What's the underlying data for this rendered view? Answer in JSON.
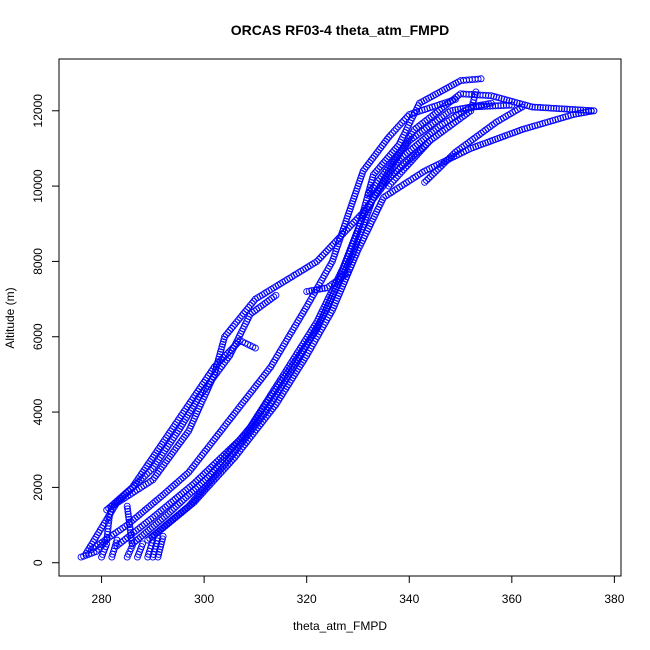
{
  "chart_data": {
    "type": "scatter",
    "title": "ORCAS RF03-4 theta_atm_FMPD",
    "xlabel": "theta_atm_FMPD",
    "ylabel": "Altitude (m)",
    "xlim": [
      275.6,
      377.0
    ],
    "ylim": [
      152,
      12870
    ],
    "x_ticks": [
      280,
      300,
      320,
      340,
      360,
      380
    ],
    "y_ticks": [
      0,
      2000,
      4000,
      6000,
      8000,
      10000,
      12000
    ],
    "x_tick_labels": [
      "280",
      "300",
      "320",
      "340",
      "360",
      "380"
    ],
    "y_tick_labels": [
      "0",
      "2000",
      "4000",
      "6000",
      "8000",
      "10000",
      "12000"
    ],
    "grid": false,
    "legend": "none",
    "marker": "open-circle",
    "marker_color": "#0000ff",
    "series": [
      {
        "points": [
          [
            276,
            150
          ],
          [
            279,
            300
          ],
          [
            281,
            600
          ],
          [
            281.5,
            1200
          ],
          [
            282,
            1500
          ],
          [
            290,
            2200
          ],
          [
            297,
            3500
          ],
          [
            302,
            5000
          ],
          [
            304,
            6000
          ],
          [
            310,
            7000
          ],
          [
            322,
            8000
          ],
          [
            331,
            9300
          ],
          [
            336,
            10200
          ],
          [
            344,
            11200
          ],
          [
            352,
            12000
          ],
          [
            353,
            12500
          ]
        ]
      },
      {
        "points": [
          [
            277,
            250
          ],
          [
            283,
            1600
          ],
          [
            290,
            2500
          ],
          [
            295,
            3500
          ],
          [
            299,
            4400
          ],
          [
            305,
            5500
          ],
          [
            309,
            6600
          ],
          [
            314,
            7100
          ]
        ]
      },
      {
        "points": [
          [
            281,
            1400
          ],
          [
            286,
            2000
          ],
          [
            292,
            3200
          ],
          [
            297,
            4200
          ],
          [
            302,
            5200
          ],
          [
            307,
            5900
          ],
          [
            310,
            5700
          ]
        ]
      },
      {
        "points": [
          [
            278,
            350
          ],
          [
            285,
            1000
          ],
          [
            292,
            1800
          ],
          [
            297,
            2400
          ],
          [
            305,
            3800
          ],
          [
            313,
            5200
          ],
          [
            320,
            6800
          ],
          [
            325,
            8000
          ],
          [
            329,
            9600
          ],
          [
            331,
            10400
          ],
          [
            336,
            11300
          ],
          [
            340,
            11900
          ],
          [
            349,
            12300
          ]
        ]
      },
      {
        "points": [
          [
            283,
            450
          ],
          [
            290,
            1200
          ],
          [
            298,
            2100
          ],
          [
            308,
            3400
          ],
          [
            316,
            5000
          ],
          [
            322,
            6200
          ],
          [
            326,
            7400
          ],
          [
            330,
            8800
          ],
          [
            333,
            10300
          ],
          [
            338,
            11100
          ],
          [
            342,
            12200
          ],
          [
            350,
            12800
          ],
          [
            354,
            12850
          ]
        ]
      },
      {
        "points": [
          [
            286,
            500
          ],
          [
            293,
            1300
          ],
          [
            301,
            2300
          ],
          [
            309,
            3600
          ],
          [
            316,
            5100
          ],
          [
            322,
            6400
          ],
          [
            327,
            7800
          ],
          [
            331,
            9200
          ],
          [
            336,
            10400
          ],
          [
            341,
            11500
          ],
          [
            350,
            12450
          ],
          [
            356,
            12400
          ],
          [
            364,
            12100
          ],
          [
            376,
            12000
          ]
        ]
      },
      {
        "points": [
          [
            289,
            600
          ],
          [
            297,
            1500
          ],
          [
            304,
            2600
          ],
          [
            312,
            4000
          ],
          [
            318,
            5300
          ],
          [
            323,
            6500
          ],
          [
            329,
            8200
          ],
          [
            333,
            9700
          ],
          [
            338,
            10700
          ],
          [
            346,
            11600
          ],
          [
            352,
            12100
          ],
          [
            360,
            12150
          ]
        ]
      },
      {
        "points": [
          [
            290,
            700
          ],
          [
            298,
            1600
          ],
          [
            306,
            2800
          ],
          [
            314,
            4200
          ],
          [
            320,
            5500
          ],
          [
            325,
            6700
          ],
          [
            330,
            8300
          ],
          [
            335,
            9700
          ],
          [
            343,
            10400
          ],
          [
            352,
            11000
          ],
          [
            362,
            11500
          ],
          [
            372,
            11900
          ],
          [
            376,
            12000
          ]
        ]
      },
      {
        "points": [
          [
            285,
            150
          ],
          [
            286,
            450
          ],
          [
            285,
            1500
          ]
        ]
      },
      {
        "points": [
          [
            287,
            150
          ],
          [
            288,
            500
          ]
        ]
      },
      {
        "points": [
          [
            289,
            150
          ],
          [
            290,
            600
          ]
        ]
      },
      {
        "points": [
          [
            290,
            150
          ],
          [
            291,
            650
          ]
        ]
      },
      {
        "points": [
          [
            291,
            150
          ],
          [
            292,
            700
          ]
        ]
      },
      {
        "points": [
          [
            280,
            150
          ],
          [
            281,
            500
          ]
        ]
      },
      {
        "points": [
          [
            282,
            150
          ],
          [
            283,
            600
          ]
        ]
      },
      {
        "points": [
          [
            320,
            7200
          ],
          [
            324,
            7300
          ],
          [
            328,
            7700
          ]
        ]
      },
      {
        "points": [
          [
            336,
            10000
          ],
          [
            340,
            10600
          ],
          [
            344,
            11200
          ]
        ]
      },
      {
        "points": [
          [
            343,
            10100
          ],
          [
            349,
            10900
          ],
          [
            357,
            11700
          ],
          [
            362,
            12100
          ]
        ]
      },
      {
        "points": [
          [
            332,
            9800
          ],
          [
            340,
            11200
          ],
          [
            348,
            12000
          ],
          [
            356,
            12200
          ]
        ]
      }
    ]
  }
}
